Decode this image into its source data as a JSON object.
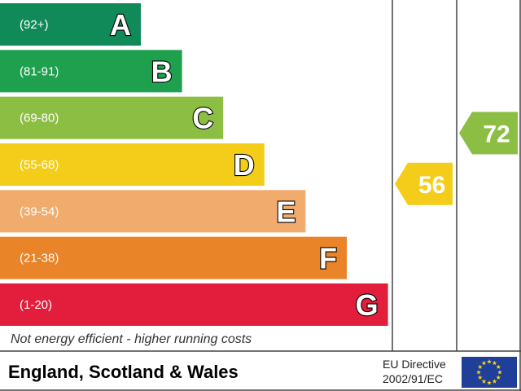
{
  "chart_data": {
    "type": "bar",
    "bands": [
      {
        "letter": "A",
        "range": "(92+)",
        "min": 92,
        "max": 100,
        "color": "#0f8a58"
      },
      {
        "letter": "B",
        "range": "(81-91)",
        "min": 81,
        "max": 91,
        "color": "#1ea04e"
      },
      {
        "letter": "C",
        "range": "(69-80)",
        "min": 69,
        "max": 80,
        "color": "#8cbe43"
      },
      {
        "letter": "D",
        "range": "(55-68)",
        "min": 55,
        "max": 68,
        "color": "#f4cd1b"
      },
      {
        "letter": "E",
        "range": "(39-54)",
        "min": 39,
        "max": 54,
        "color": "#f1ab6c"
      },
      {
        "letter": "F",
        "range": "(21-38)",
        "min": 21,
        "max": 38,
        "color": "#ea8428"
      },
      {
        "letter": "G",
        "range": "(1-20)",
        "min": 1,
        "max": 20,
        "color": "#e31d3c"
      }
    ],
    "ratings": [
      {
        "value": 56,
        "band": "D",
        "color": "#f4cd1b"
      },
      {
        "value": 72,
        "band": "C",
        "color": "#8cbe43"
      }
    ],
    "footer_note": "Not energy efficient - higher running costs"
  },
  "footer": {
    "region": "England, Scotland & Wales",
    "directive_line1": "EU Directive",
    "directive_line2": "2002/91/EC",
    "flag_color": "#1f3f99",
    "star_color": "#f7d418"
  }
}
